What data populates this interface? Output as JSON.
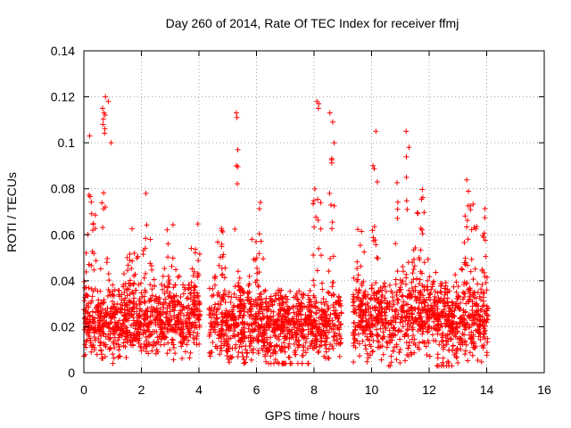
{
  "chart_data": {
    "type": "scatter",
    "title": "Day 260 of 2014, Rate Of TEC Index for receiver ffmj",
    "xlabel": "GPS time / hours",
    "ylabel": "ROTI / TECUs",
    "xlim": [
      0,
      16
    ],
    "ylim": [
      0,
      0.14
    ],
    "x_ticks": [
      0,
      2,
      4,
      6,
      8,
      10,
      12,
      14,
      16
    ],
    "x_tick_labels": [
      "0",
      "2",
      "4",
      "6",
      "8",
      "10",
      "12",
      "14",
      "16"
    ],
    "y_ticks": [
      0,
      0.02,
      0.04,
      0.06,
      0.08,
      0.1,
      0.12,
      0.14
    ],
    "y_tick_labels": [
      "0",
      "0.02",
      "0.04",
      "0.06",
      "0.08",
      "0.1",
      "0.12",
      "0.14"
    ],
    "grid": true,
    "marker": "+",
    "series": [
      {
        "name": "ROTI",
        "color": "#ff0000",
        "segments": [
          {
            "x_range": [
              0.0,
              4.05
            ],
            "baseline": 0.017,
            "spread": 0.012,
            "floor": 0.004
          },
          {
            "x_range": [
              4.35,
              8.95
            ],
            "baseline": 0.016,
            "spread": 0.011,
            "floor": 0.004
          },
          {
            "x_range": [
              9.35,
              14.05
            ],
            "baseline": 0.019,
            "spread": 0.013,
            "floor": 0.003
          }
        ],
        "peaks": [
          {
            "x": 0.3,
            "width": 0.35,
            "height": 0.078
          },
          {
            "x": 0.7,
            "width": 0.18,
            "height": 0.118
          },
          {
            "x": 1.6,
            "width": 0.5,
            "height": 0.055
          },
          {
            "x": 2.2,
            "width": 0.4,
            "height": 0.06
          },
          {
            "x": 3.0,
            "width": 0.5,
            "height": 0.05
          },
          {
            "x": 3.9,
            "width": 0.3,
            "height": 0.055
          },
          {
            "x": 4.7,
            "width": 0.4,
            "height": 0.058
          },
          {
            "x": 5.3,
            "width": 0.15,
            "height": 0.112
          },
          {
            "x": 6.0,
            "width": 0.4,
            "height": 0.062
          },
          {
            "x": 8.1,
            "width": 0.25,
            "height": 0.118
          },
          {
            "x": 8.6,
            "width": 0.2,
            "height": 0.113
          },
          {
            "x": 9.6,
            "width": 0.3,
            "height": 0.052
          },
          {
            "x": 10.1,
            "width": 0.15,
            "height": 0.105
          },
          {
            "x": 10.9,
            "width": 0.2,
            "height": 0.08
          },
          {
            "x": 11.2,
            "width": 0.15,
            "height": 0.105
          },
          {
            "x": 11.7,
            "width": 0.5,
            "height": 0.063
          },
          {
            "x": 13.4,
            "width": 0.5,
            "height": 0.068
          },
          {
            "x": 13.9,
            "width": 0.2,
            "height": 0.07
          }
        ],
        "highlights": [
          {
            "x": 0.75,
            "y": 0.12
          },
          {
            "x": 0.85,
            "y": 0.118
          },
          {
            "x": 0.65,
            "y": 0.115
          },
          {
            "x": 0.7,
            "y": 0.113
          },
          {
            "x": 0.95,
            "y": 0.1
          },
          {
            "x": 0.2,
            "y": 0.103
          },
          {
            "x": 5.3,
            "y": 0.113
          },
          {
            "x": 5.32,
            "y": 0.111
          },
          {
            "x": 5.35,
            "y": 0.097
          },
          {
            "x": 5.3,
            "y": 0.09
          },
          {
            "x": 8.1,
            "y": 0.118
          },
          {
            "x": 8.15,
            "y": 0.115
          },
          {
            "x": 8.55,
            "y": 0.113
          },
          {
            "x": 8.65,
            "y": 0.109
          },
          {
            "x": 8.7,
            "y": 0.1
          },
          {
            "x": 10.15,
            "y": 0.105
          },
          {
            "x": 11.2,
            "y": 0.105
          },
          {
            "x": 11.3,
            "y": 0.098
          },
          {
            "x": 10.05,
            "y": 0.09
          },
          {
            "x": 10.2,
            "y": 0.083
          }
        ]
      }
    ]
  }
}
